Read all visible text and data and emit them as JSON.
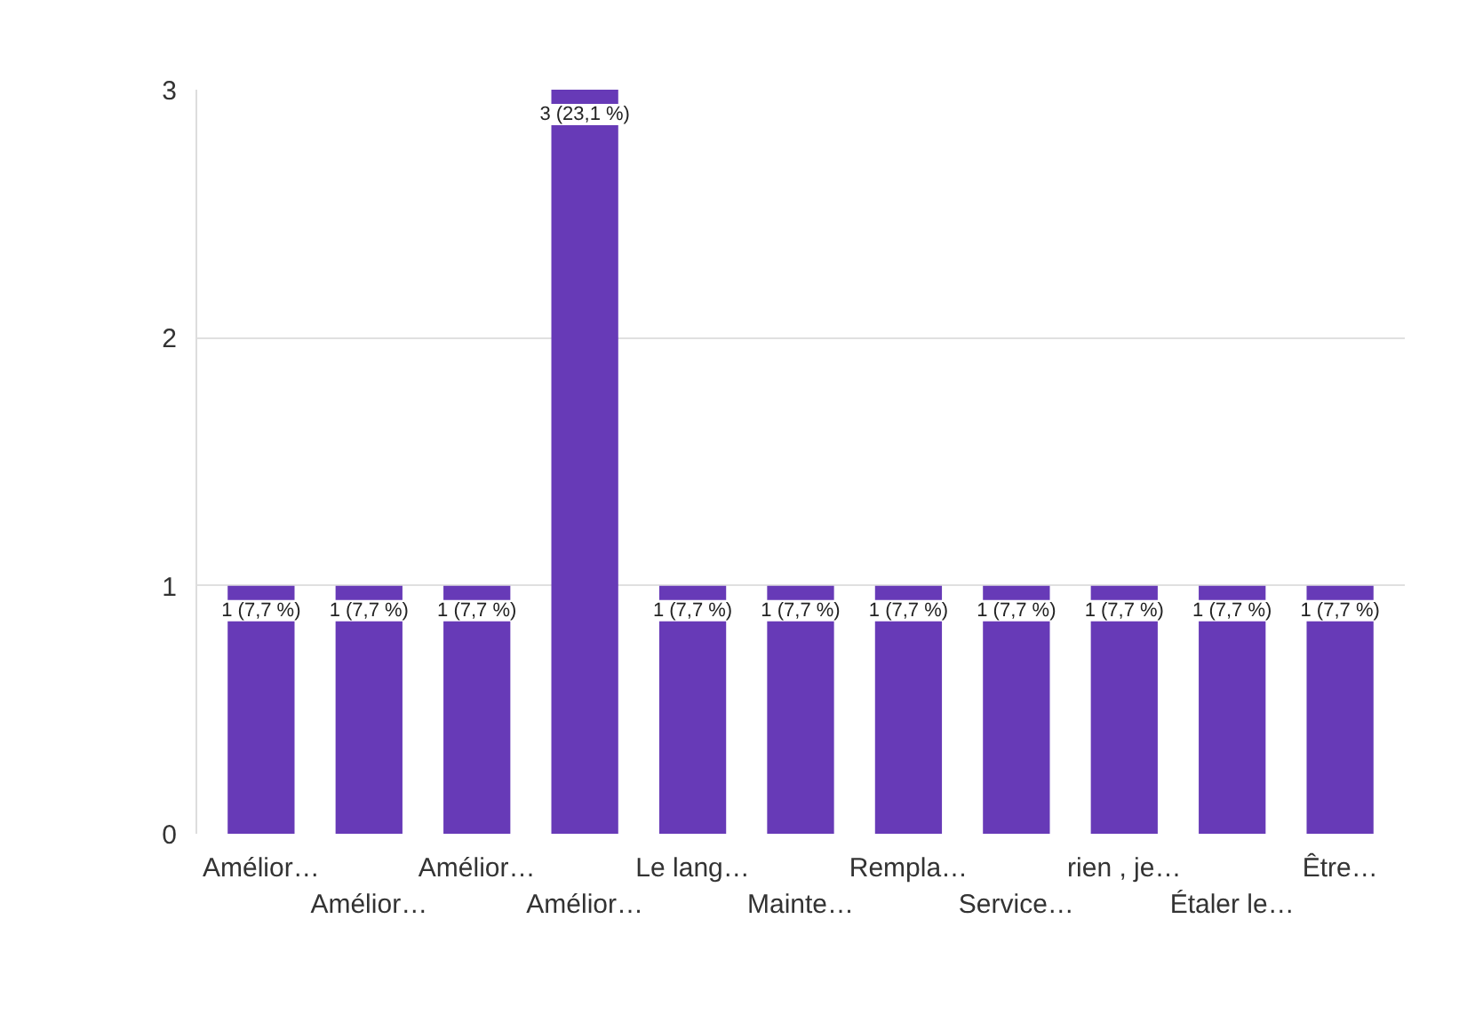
{
  "chart_data": {
    "type": "bar",
    "categories": [
      "Amélior…",
      "Amélior…",
      "Amélior…",
      "Amélior…",
      "Le lang…",
      "Mainte…",
      "Rempla…",
      "Service…",
      "rien , je…",
      "Étaler le…",
      "Être…"
    ],
    "values": [
      1,
      1,
      1,
      3,
      1,
      1,
      1,
      1,
      1,
      1,
      1
    ],
    "value_labels": [
      "1 (7,7 %)",
      "1 (7,7 %)",
      "1 (7,7 %)",
      "3 (23,1 %)",
      "1 (7,7 %)",
      "1 (7,7 %)",
      "1 (7,7 %)",
      "1 (7,7 %)",
      "1 (7,7 %)",
      "1 (7,7 %)",
      "1 (7,7 %)"
    ],
    "color": "#673ab7",
    "ylim": [
      0,
      3
    ],
    "yticks": [
      0,
      1,
      2,
      3
    ],
    "grid": "y"
  }
}
